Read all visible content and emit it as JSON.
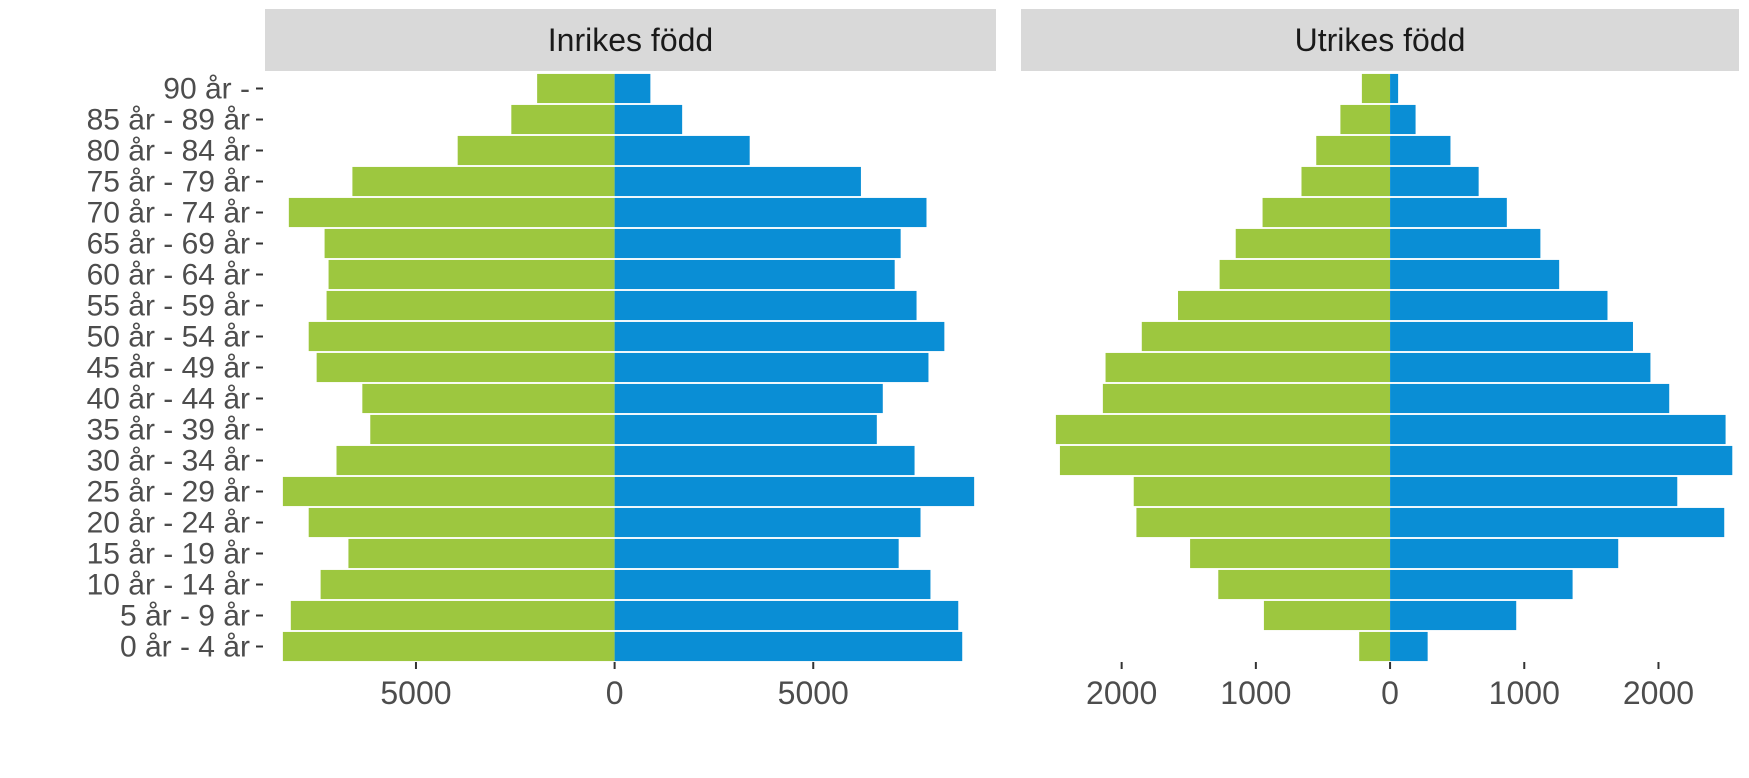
{
  "chart_data": {
    "type": "bar",
    "layout": "population-pyramid",
    "facets": [
      "Inrikes född",
      "Utrikes född"
    ],
    "categories": [
      "0 år - 4 år",
      "5 år - 9 år",
      "10 år - 14 år",
      "15 år - 19 år",
      "20 år - 24 år",
      "25 år - 29 år",
      "30 år - 34 år",
      "35 år - 39 år",
      "40 år - 44 år",
      "45 år - 49 år",
      "50 år - 54 år",
      "55 år - 59 år",
      "60 år - 64 år",
      "65 år - 69 år",
      "70 år - 74 år",
      "75 år - 79 år",
      "80 år - 84 år",
      "85 år - 89 år",
      "90 år -"
    ],
    "panels": [
      {
        "facet": "Inrikes född",
        "xlim": [
          -8800,
          9600
        ],
        "xticks": [
          -5000,
          0,
          5000
        ],
        "xtick_labels": [
          "5000",
          "0",
          "5000"
        ],
        "series": [
          {
            "color": "#9dc73f",
            "values": [
              -8350,
              -8150,
              -7400,
              -6700,
              -7700,
              -8350,
              -7000,
              -6150,
              -6350,
              -7500,
              -7700,
              -7250,
              -7200,
              -7300,
              -8200,
              -6600,
              -3950,
              -2600,
              -1950
            ]
          },
          {
            "color": "#0a8ed5",
            "values": [
              8750,
              8650,
              7950,
              7150,
              7700,
              9050,
              7550,
              6600,
              6750,
              7900,
              8300,
              7600,
              7050,
              7200,
              7850,
              6200,
              3400,
              1700,
              900
            ]
          }
        ]
      },
      {
        "facet": "Utrikes född",
        "xlim": [
          -2750,
          2600
        ],
        "xticks": [
          -2000,
          -1000,
          0,
          1000,
          2000
        ],
        "xtick_labels": [
          "2000",
          "1000",
          "0",
          "1000",
          "2000"
        ],
        "series": [
          {
            "color": "#9dc73f",
            "values": [
              -230,
              -940,
              -1280,
              -1490,
              -1890,
              -1910,
              -2460,
              -2490,
              -2140,
              -2120,
              -1850,
              -1580,
              -1270,
              -1150,
              -950,
              -660,
              -550,
              -370,
              -210
            ]
          },
          {
            "color": "#0a8ed5",
            "values": [
              280,
              940,
              1360,
              1700,
              2490,
              2140,
              2550,
              2500,
              2080,
              1940,
              1810,
              1620,
              1260,
              1120,
              870,
              660,
              450,
              190,
              60
            ]
          }
        ]
      }
    ],
    "grid": false
  }
}
